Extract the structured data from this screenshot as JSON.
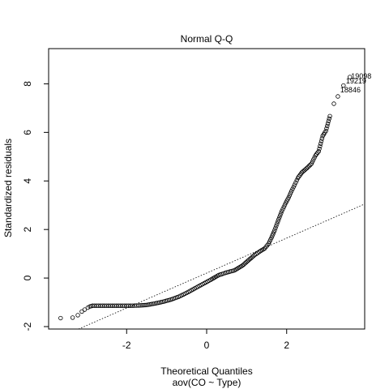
{
  "chart_data": {
    "type": "scatter",
    "title": "Normal Q-Q",
    "xlabel": "Theoretical Quantiles",
    "sublabel": "aov(CO ~ Type)",
    "ylabel": "Standardized residuals",
    "xlim": [
      -3.95,
      3.95
    ],
    "ylim": [
      -2.1,
      9.45
    ],
    "xticks": [
      -2,
      0,
      2
    ],
    "yticks": [
      -2,
      0,
      2,
      4,
      6,
      8
    ],
    "point_color": "#000000",
    "reference_line": {
      "intercept": 0.205,
      "slope": 0.72,
      "style": "dotted"
    },
    "curve": {
      "description": "sampled Q-Q points (theoretical, standardized)",
      "x": [
        -3.65,
        -3.35,
        -3.22,
        -3.12,
        -3.05,
        -2.97,
        -2.92,
        -2.85,
        -2.7,
        -2.5,
        -2.3,
        -2.1,
        -1.9,
        -1.7,
        -1.5,
        -1.3,
        -1.1,
        -0.9,
        -0.7,
        -0.5,
        -0.3,
        -0.1,
        0.1,
        0.3,
        0.5,
        0.7,
        0.9,
        1.05,
        1.2,
        1.35,
        1.45,
        1.55,
        1.62,
        1.7,
        1.78,
        1.88,
        1.98,
        2.05,
        2.12,
        2.2,
        2.28,
        2.38,
        2.5,
        2.62,
        2.72,
        2.8,
        2.9,
        2.98,
        3.08,
        3.18,
        3.28,
        3.42,
        3.58
      ],
      "y": [
        -1.65,
        -1.63,
        -1.53,
        -1.38,
        -1.3,
        -1.22,
        -1.17,
        -1.14,
        -1.14,
        -1.14,
        -1.14,
        -1.14,
        -1.14,
        -1.13,
        -1.11,
        -1.05,
        -0.98,
        -0.89,
        -0.77,
        -0.61,
        -0.43,
        -0.25,
        -0.07,
        0.12,
        0.23,
        0.32,
        0.52,
        0.74,
        0.95,
        1.12,
        1.22,
        1.42,
        1.66,
        1.97,
        2.33,
        2.76,
        3.1,
        3.32,
        3.58,
        3.84,
        4.12,
        4.35,
        4.52,
        4.71,
        5.05,
        5.22,
        5.85,
        6.06,
        6.67,
        7.18,
        7.48,
        7.93,
        8.28
      ]
    },
    "annotations": [
      {
        "label": "19098",
        "x": 3.55,
        "y": 8.35
      },
      {
        "label": "19219",
        "x": 3.42,
        "y": 8.15
      },
      {
        "label": "18846",
        "x": 3.28,
        "y": 7.78
      }
    ],
    "grid": false,
    "legend": "none"
  }
}
